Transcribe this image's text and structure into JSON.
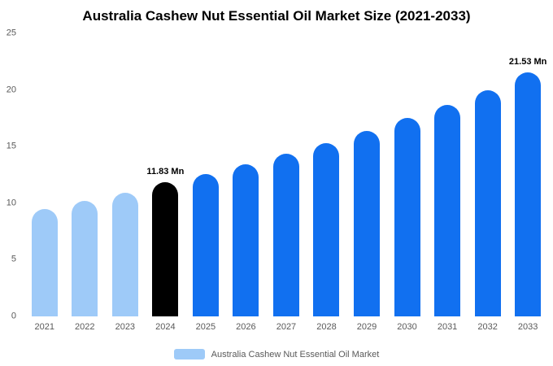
{
  "header": {
    "title": "Australia Cashew Nut Essential Oil Market Size (2021-2033)"
  },
  "colors": {
    "light_blue": "#9ECAF8",
    "black": "#000000",
    "primary_blue": "#1170F0",
    "axis_text": "#595959",
    "background": "#FFFFFF"
  },
  "legend": {
    "label": "Australia Cashew Nut Essential Oil Market",
    "swatch_color": "#9ECAF8"
  },
  "chart_data": {
    "type": "bar",
    "title": "Australia Cashew Nut Essential Oil Market Size (2021-2033)",
    "categories": [
      "2021",
      "2022",
      "2023",
      "2024",
      "2025",
      "2026",
      "2027",
      "2028",
      "2029",
      "2030",
      "2031",
      "2032",
      "2033"
    ],
    "values": [
      9.5,
      10.2,
      10.9,
      11.83,
      12.6,
      13.4,
      14.4,
      15.3,
      16.4,
      17.5,
      18.7,
      20.0,
      21.53
    ],
    "bar_colors": [
      "#9ECAF8",
      "#9ECAF8",
      "#9ECAF8",
      "#000000",
      "#1170F0",
      "#1170F0",
      "#1170F0",
      "#1170F0",
      "#1170F0",
      "#1170F0",
      "#1170F0",
      "#1170F0",
      "#1170F0"
    ],
    "data_labels": [
      null,
      null,
      null,
      "11.83 Mn",
      null,
      null,
      null,
      null,
      null,
      null,
      null,
      null,
      "21.53 Mn"
    ],
    "xlabel": "",
    "ylabel": "",
    "ylim": [
      0,
      25
    ],
    "yticks": [
      0,
      5,
      10,
      15,
      20,
      25
    ],
    "grid": false,
    "legend_entries": [
      {
        "label": "Australia Cashew Nut Essential Oil Market",
        "color": "#9ECAF8"
      }
    ],
    "legend_position": "bottom"
  }
}
